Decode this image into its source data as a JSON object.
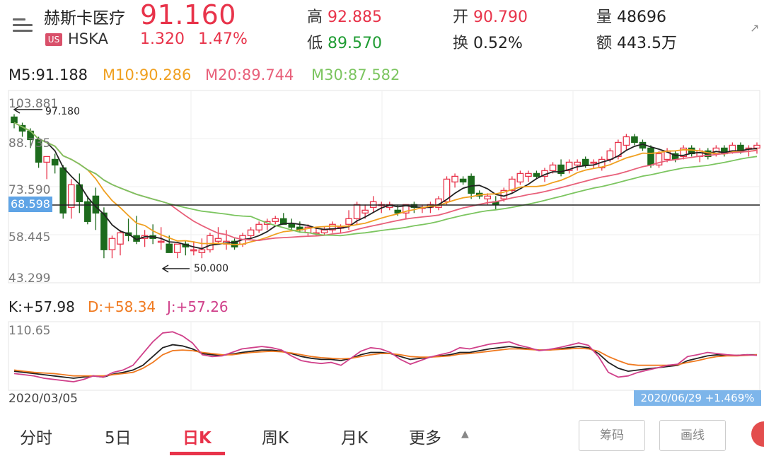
{
  "stock": {
    "name": "赫斯卡医疗",
    "market_badge": "US",
    "ticker": "HSKA",
    "price": "91.160",
    "change": "1.320",
    "change_pct": "1.47%",
    "high_label": "高",
    "high": "92.885",
    "low_label": "低",
    "low": "89.570",
    "open_label": "开",
    "open": "90.790",
    "turnover_label": "换",
    "turnover": "0.52%",
    "volume_label": "量",
    "volume": "48696",
    "amount_label": "额",
    "amount": "443.5万"
  },
  "ma": {
    "m5": "M5:91.188",
    "m10": "M10:90.286",
    "m20": "M20:89.744",
    "m30": "M30:87.582"
  },
  "axis": {
    "y1": "103.881",
    "y2": "88.735",
    "y3": "73.590",
    "y4": "58.445",
    "y5": "43.299",
    "current_tag": "68.598",
    "max_annot": "97.180",
    "min_annot": "50.000",
    "kdj_top": "110.65",
    "start_date": "2020/03/05",
    "end_tag": "2020/06/29 +1.469%"
  },
  "kdj": {
    "k": "K:+57.98",
    "d": "D:+58.34",
    "j": "J:+57.26"
  },
  "tabs": [
    "分时",
    "5日",
    "日K",
    "周K",
    "月K",
    "更多"
  ],
  "active_tab": "日K",
  "buttons": {
    "chips": "筹码",
    "draw": "画线"
  },
  "colors": {
    "up": "#e8334a",
    "down": "#1d6b1d",
    "m5": "#222222",
    "m10": "#f0a020",
    "m20": "#e8607a",
    "m30": "#7cc560"
  },
  "chart_data": {
    "type": "candlestick",
    "ylim": [
      43.299,
      103.881
    ],
    "ticks": [
      103.881,
      88.735,
      73.59,
      58.445,
      43.299
    ],
    "reference_line": 68.598,
    "candles": [
      [
        100,
        101,
        96,
        98
      ],
      [
        97,
        98,
        93,
        95
      ],
      [
        95,
        96,
        89,
        92
      ],
      [
        92,
        93,
        82,
        84
      ],
      [
        84,
        86,
        78,
        86
      ],
      [
        85,
        87,
        80,
        83
      ],
      [
        82,
        83,
        64,
        66
      ],
      [
        68,
        78,
        64,
        76
      ],
      [
        76,
        80,
        66,
        70
      ],
      [
        70,
        72,
        62,
        63
      ],
      [
        72,
        75,
        60,
        66
      ],
      [
        66,
        68,
        50,
        53
      ],
      [
        53,
        58,
        50,
        57
      ],
      [
        55,
        60,
        51,
        59
      ],
      [
        59,
        64,
        56,
        58
      ],
      [
        58,
        65,
        55,
        56
      ],
      [
        57,
        60,
        54,
        58
      ],
      [
        58,
        62,
        55,
        57
      ],
      [
        56,
        61,
        53,
        56
      ],
      [
        55,
        58,
        52,
        52
      ],
      [
        52,
        55,
        50,
        55
      ],
      [
        55,
        56,
        51,
        54
      ],
      [
        53,
        56,
        51,
        53
      ],
      [
        52,
        57,
        50,
        53
      ],
      [
        53,
        59,
        52,
        58
      ],
      [
        56,
        61,
        55,
        57
      ],
      [
        55,
        60,
        53,
        56
      ],
      [
        56,
        57,
        53,
        54
      ],
      [
        55,
        59,
        54,
        58
      ],
      [
        58,
        61,
        57,
        60
      ],
      [
        60,
        63,
        59,
        62
      ],
      [
        62,
        64,
        60,
        63
      ],
      [
        63,
        65,
        62,
        64
      ],
      [
        64,
        66,
        62,
        62
      ],
      [
        62,
        64,
        60,
        61
      ],
      [
        61,
        63,
        59,
        60
      ],
      [
        59,
        62,
        58,
        61
      ],
      [
        59,
        61,
        58,
        59
      ],
      [
        59,
        61,
        58,
        60
      ],
      [
        60,
        63,
        59,
        62
      ],
      [
        61,
        62,
        59,
        61
      ],
      [
        62,
        67,
        60,
        64
      ],
      [
        64,
        70,
        62,
        69
      ],
      [
        66,
        69,
        64,
        67
      ],
      [
        68,
        72,
        66,
        70
      ],
      [
        69,
        70,
        66,
        69
      ],
      [
        68,
        70,
        67,
        69
      ],
      [
        67,
        69,
        65,
        66
      ],
      [
        66,
        69,
        64,
        69
      ],
      [
        69,
        70,
        66,
        68
      ],
      [
        68,
        69,
        66,
        68
      ],
      [
        68,
        70,
        66,
        69
      ],
      [
        68,
        72,
        67,
        71
      ],
      [
        70,
        79,
        69,
        78
      ],
      [
        77,
        80,
        75,
        79
      ],
      [
        78,
        79,
        76,
        77
      ],
      [
        79,
        80,
        71,
        73
      ],
      [
        73,
        74,
        71,
        72
      ],
      [
        71,
        73,
        69,
        72
      ],
      [
        70,
        72,
        67,
        69
      ],
      [
        71,
        75,
        70,
        74
      ],
      [
        74,
        79,
        73,
        78
      ],
      [
        77,
        81,
        76,
        80
      ],
      [
        79,
        81,
        77,
        80
      ],
      [
        80,
        81,
        78,
        79
      ],
      [
        79,
        82,
        77,
        81
      ],
      [
        81,
        84,
        80,
        83
      ],
      [
        83,
        85,
        79,
        80
      ],
      [
        81,
        85,
        80,
        84
      ],
      [
        83,
        85,
        81,
        84
      ],
      [
        85,
        86,
        82,
        83
      ],
      [
        84,
        85,
        82,
        84
      ],
      [
        82,
        86,
        81,
        85
      ],
      [
        85,
        89,
        84,
        88
      ],
      [
        86,
        92,
        85,
        91
      ],
      [
        90,
        94,
        88,
        93
      ],
      [
        93,
        94,
        90,
        91
      ],
      [
        91,
        92,
        88,
        89
      ],
      [
        89,
        90,
        82,
        83
      ],
      [
        83,
        88,
        82,
        87
      ],
      [
        85,
        89,
        84,
        88
      ],
      [
        87,
        88,
        84,
        85
      ],
      [
        86,
        90,
        85,
        89
      ],
      [
        89,
        90,
        86,
        87
      ],
      [
        86,
        89,
        84,
        88
      ],
      [
        88,
        89,
        85,
        86
      ],
      [
        87,
        90,
        86,
        89
      ],
      [
        89,
        90,
        86,
        87
      ],
      [
        88,
        91,
        87,
        90
      ],
      [
        90,
        91,
        87,
        88
      ],
      [
        89,
        90,
        86,
        89
      ],
      [
        89,
        91,
        87,
        90
      ]
    ],
    "kdj_series": {
      "K": [
        30,
        28,
        26,
        24,
        22,
        20,
        18,
        20,
        22,
        20,
        25,
        28,
        32,
        40,
        55,
        70,
        75,
        73,
        68,
        60,
        58,
        57,
        59,
        62,
        64,
        66,
        66,
        64,
        60,
        55,
        52,
        50,
        50,
        48,
        52,
        58,
        62,
        62,
        60,
        55,
        50,
        52,
        54,
        56,
        58,
        62,
        62,
        65,
        68,
        70,
        72,
        70,
        68,
        66,
        66,
        68,
        70,
        72,
        70,
        60,
        45,
        35,
        30,
        32,
        34,
        36,
        38,
        40,
        48,
        52,
        56,
        58,
        57,
        57,
        58,
        58
      ],
      "D": [
        32,
        30,
        28,
        27,
        26,
        24,
        22,
        22,
        22,
        22,
        24,
        26,
        28,
        35,
        45,
        58,
        65,
        66,
        65,
        62,
        60,
        58,
        58,
        60,
        62,
        63,
        64,
        63,
        61,
        58,
        55,
        53,
        52,
        51,
        52,
        55,
        58,
        60,
        60,
        58,
        55,
        54,
        54,
        55,
        56,
        59,
        60,
        62,
        64,
        66,
        68,
        68,
        67,
        66,
        66,
        67,
        68,
        69,
        68,
        64,
        55,
        48,
        42,
        40,
        40,
        40,
        40,
        41,
        45,
        48,
        52,
        55,
        56,
        56,
        57,
        58
      ],
      "J": [
        26,
        24,
        22,
        18,
        16,
        14,
        12,
        16,
        22,
        20,
        28,
        32,
        40,
        60,
        80,
        95,
        97,
        90,
        78,
        58,
        55,
        56,
        62,
        68,
        70,
        72,
        70,
        66,
        56,
        48,
        45,
        43,
        45,
        40,
        52,
        64,
        70,
        68,
        62,
        50,
        42,
        48,
        54,
        58,
        62,
        70,
        68,
        72,
        76,
        78,
        80,
        74,
        70,
        65,
        67,
        70,
        74,
        78,
        74,
        55,
        28,
        20,
        22,
        28,
        32,
        36,
        40,
        42,
        55,
        58,
        62,
        60,
        58,
        57,
        58,
        57
      ]
    },
    "kdj_ylim": [
      0,
      110.65
    ],
    "x_range": [
      "2020/03/05",
      "2020/06/29"
    ]
  }
}
